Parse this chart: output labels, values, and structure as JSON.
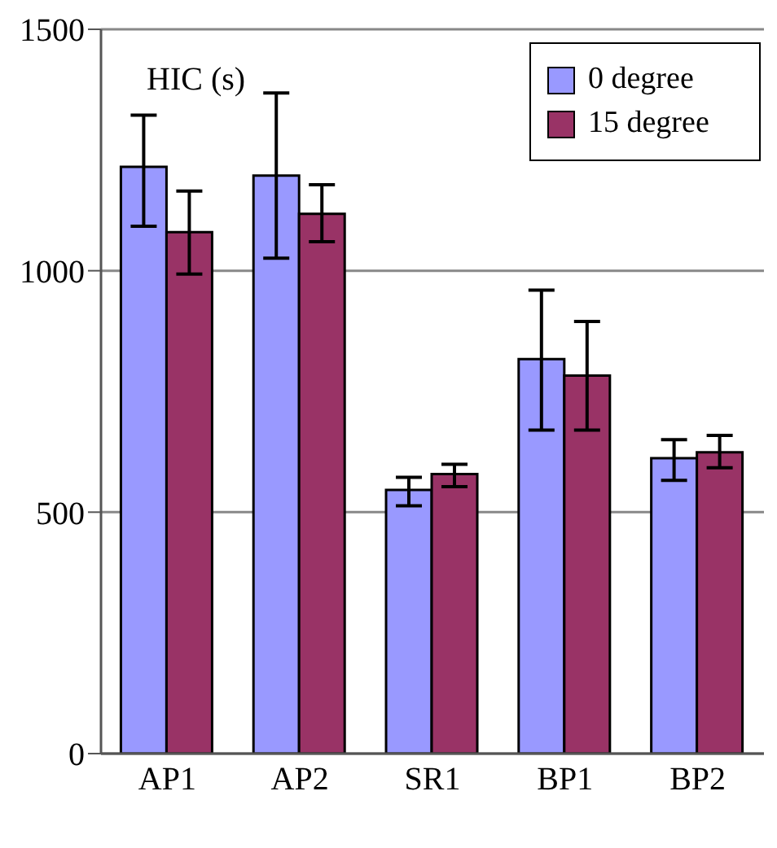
{
  "chart_data": {
    "type": "bar",
    "ylabel": "HIC (s)",
    "categories": [
      "AP1",
      "AP2",
      "SR1",
      "BP1",
      "BP2"
    ],
    "series": [
      {
        "name": "0 degree",
        "color": "#9999ff",
        "values": [
          1215,
          1197,
          546,
          817,
          612
        ],
        "errors": [
          [
            1092,
            1322
          ],
          [
            1026,
            1368
          ],
          [
            513,
            572
          ],
          [
            670,
            960
          ],
          [
            566,
            650
          ]
        ]
      },
      {
        "name": "15 degree",
        "color": "#993366",
        "values": [
          1080,
          1118,
          579,
          783,
          624
        ],
        "errors": [
          [
            993,
            1165
          ],
          [
            1060,
            1178
          ],
          [
            553,
            599
          ],
          [
            670,
            895
          ],
          [
            592,
            659
          ]
        ]
      }
    ],
    "ylim": [
      0,
      1500
    ],
    "yticks": [
      0,
      500,
      1000,
      1500
    ],
    "grid": "y",
    "legend": "top right"
  }
}
